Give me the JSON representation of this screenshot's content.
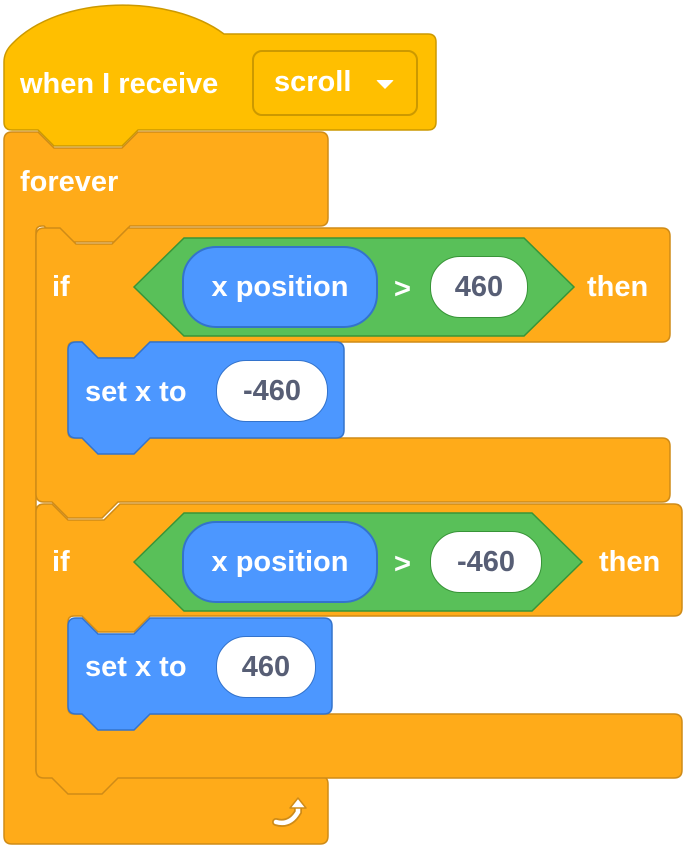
{
  "hat": {
    "label": "when I receive",
    "message": "scroll"
  },
  "loop": {
    "label": "forever"
  },
  "if1": {
    "if_label": "if",
    "reporter": "x position",
    "operator": ">",
    "value": "460",
    "then_label": "then",
    "set_label": "set x to",
    "set_value": "-460"
  },
  "if2": {
    "if_label": "if",
    "reporter": "x position",
    "operator": ">",
    "value": "-460",
    "then_label": "then",
    "set_label": "set x to",
    "set_value": "460"
  },
  "icons": {
    "loop_arrow": "loop-arrow-icon",
    "dropdown": "caret-down-icon"
  },
  "colors": {
    "events": "#ffbf00",
    "events_border": "#cc9900",
    "control": "#ffab19",
    "control_border": "#cf8b17",
    "operators": "#59c059",
    "operators_border": "#389438",
    "motion": "#4c97ff",
    "motion_border": "#3373cc"
  }
}
